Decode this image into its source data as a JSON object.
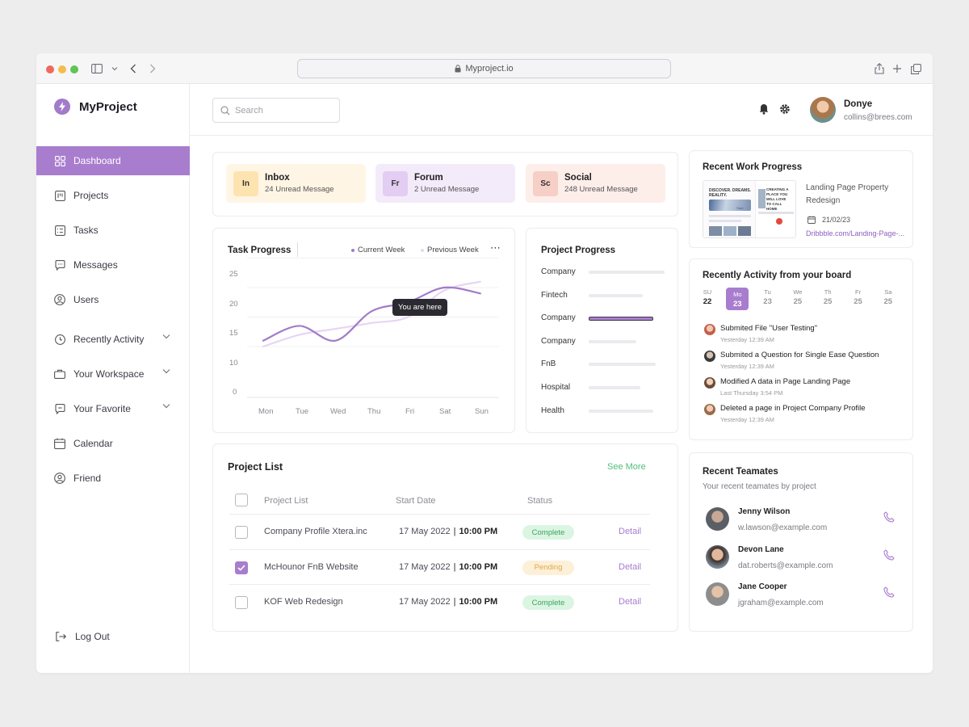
{
  "browser": {
    "url": "Myproject.io"
  },
  "brand": {
    "name": "MyProject",
    "accent": "#a87dce"
  },
  "sidebar": {
    "items": [
      {
        "label": "Dashboard",
        "icon": "grid-icon",
        "active": true
      },
      {
        "label": "Projects",
        "icon": "kanban-icon"
      },
      {
        "label": "Tasks",
        "icon": "checklist-icon"
      },
      {
        "label": "Messages",
        "icon": "chat-icon"
      },
      {
        "label": "Users",
        "icon": "user-icon"
      },
      {
        "label": "Recently Activity",
        "icon": "clock-icon",
        "expandable": true
      },
      {
        "label": "Your Workspace",
        "icon": "briefcase-icon",
        "expandable": true
      },
      {
        "label": "Your Favorite",
        "icon": "star-chat-icon",
        "expandable": true
      },
      {
        "label": "Calendar",
        "icon": "calendar-icon"
      },
      {
        "label": "Friend",
        "icon": "user-icon"
      }
    ],
    "logout": "Log Out"
  },
  "topbar": {
    "search_placeholder": "Search",
    "user": {
      "name": "Donye",
      "email": "collins@brees.com"
    }
  },
  "messages": [
    {
      "badge": "In",
      "title": "Inbox",
      "subtitle": "24 Unread Message",
      "bg": "#fff5e4",
      "badge_bg": "#fde3b0"
    },
    {
      "badge": "Fr",
      "title": "Forum",
      "subtitle": "2 Unread Message",
      "bg": "#f4ebfa",
      "badge_bg": "#e3cdf3"
    },
    {
      "badge": "Sc",
      "title": "Social",
      "subtitle": "248 Unread Message",
      "bg": "#fdeeea",
      "badge_bg": "#f6cfc6"
    }
  ],
  "task_progress": {
    "title": "Task Progress",
    "menu": "⋯",
    "tooltip": "You are here"
  },
  "chart_data": {
    "type": "line",
    "title": "Task Progress",
    "categories": [
      "Mon",
      "Tue",
      "Wed",
      "Thu",
      "Fri",
      "Sat",
      "Sun"
    ],
    "yticks": [
      "25",
      "20",
      "15",
      "10",
      "0"
    ],
    "series": [
      {
        "name": "Current Week",
        "color": "#a27bc9",
        "values": [
          11,
          13.5,
          11,
          16,
          17.5,
          20,
          19
        ]
      },
      {
        "name": "Previous Week",
        "color": "#e6d6f2",
        "values": [
          10,
          12,
          13,
          14,
          15,
          19.5,
          21
        ]
      }
    ],
    "legend": "top-right",
    "grid": true
  },
  "project_progress": {
    "title": "Project Progress",
    "rows": [
      {
        "label": "Company",
        "value": 1.0
      },
      {
        "label": "Fintech",
        "value": 0.71
      },
      {
        "label": "Company",
        "value": 0.85,
        "highlight": true
      },
      {
        "label": "Company",
        "value": 0.63
      },
      {
        "label": "FnB",
        "value": 0.88
      },
      {
        "label": "Hospital",
        "value": 0.68
      },
      {
        "label": "Health",
        "value": 0.85
      }
    ]
  },
  "project_list": {
    "title": "Project List",
    "see_more": "See More",
    "columns": [
      "Project List",
      "Start Date",
      "Status"
    ],
    "rows": [
      {
        "name": "Company Profile Xtera.inc",
        "date": "17 May 2022",
        "time": "10:00 PM",
        "status": "Complete",
        "checked": false,
        "action": "Detail"
      },
      {
        "name": "McHounor FnB Website",
        "date": "17 May 2022",
        "time": "10:00 PM",
        "status": "Pending",
        "checked": true,
        "action": "Detail"
      },
      {
        "name": "KOF Web Redesign",
        "date": "17 May 2022",
        "time": "10:00 PM",
        "status": "Complete",
        "checked": false,
        "action": "Detail"
      }
    ]
  },
  "recent_work": {
    "title": "Recent Work Progress",
    "name_line1": "Landing Page Property",
    "name_line2": "Redesign",
    "date": "21/02/23",
    "link": "Dribbble.com/Landing-Page-...",
    "thumb_text1": "DISCOVER. DREAMS.",
    "thumb_text2": "REALITY.",
    "thumb_text3": "CREATING A",
    "thumb_text4": "PLACE YOU",
    "thumb_text5": "WILL LOVE",
    "thumb_text6": "TO CALL",
    "thumb_text7": "HOME",
    "thumb_btn": "Start"
  },
  "activity": {
    "title": "Recently Activity from your board",
    "days": [
      {
        "name": "SU",
        "num": "22"
      },
      {
        "name": "Mo",
        "num": "23",
        "active": true
      },
      {
        "name": "Tu",
        "num": "23"
      },
      {
        "name": "We",
        "num": "25"
      },
      {
        "name": "Th",
        "num": "25"
      },
      {
        "name": "Fr",
        "num": "25"
      },
      {
        "name": "Sa",
        "num": "25"
      }
    ],
    "items": [
      {
        "text": "Submited File \"User Testing\"",
        "time": "Yesterday 12:39 AM"
      },
      {
        "text": "Submited a Question for Single Ease Question",
        "time": "Yesterday 12:39 AM"
      },
      {
        "text": "Modified A data in Page Landing Page",
        "time": "Last Thursday 3:54 PM"
      },
      {
        "text": "Deleted a page in Project Company Profile",
        "time": "Yesterday 12:39 AM"
      }
    ]
  },
  "teammates": {
    "title": "Recent Teamates",
    "subtitle": "Your recent teamates by project",
    "people": [
      {
        "name": "Jenny Wilson",
        "email": "w.lawson@example.com"
      },
      {
        "name": "Devon Lane",
        "email": "dat.roberts@example.com"
      },
      {
        "name": "Jane Cooper",
        "email": "jgraham@example.com"
      }
    ]
  }
}
